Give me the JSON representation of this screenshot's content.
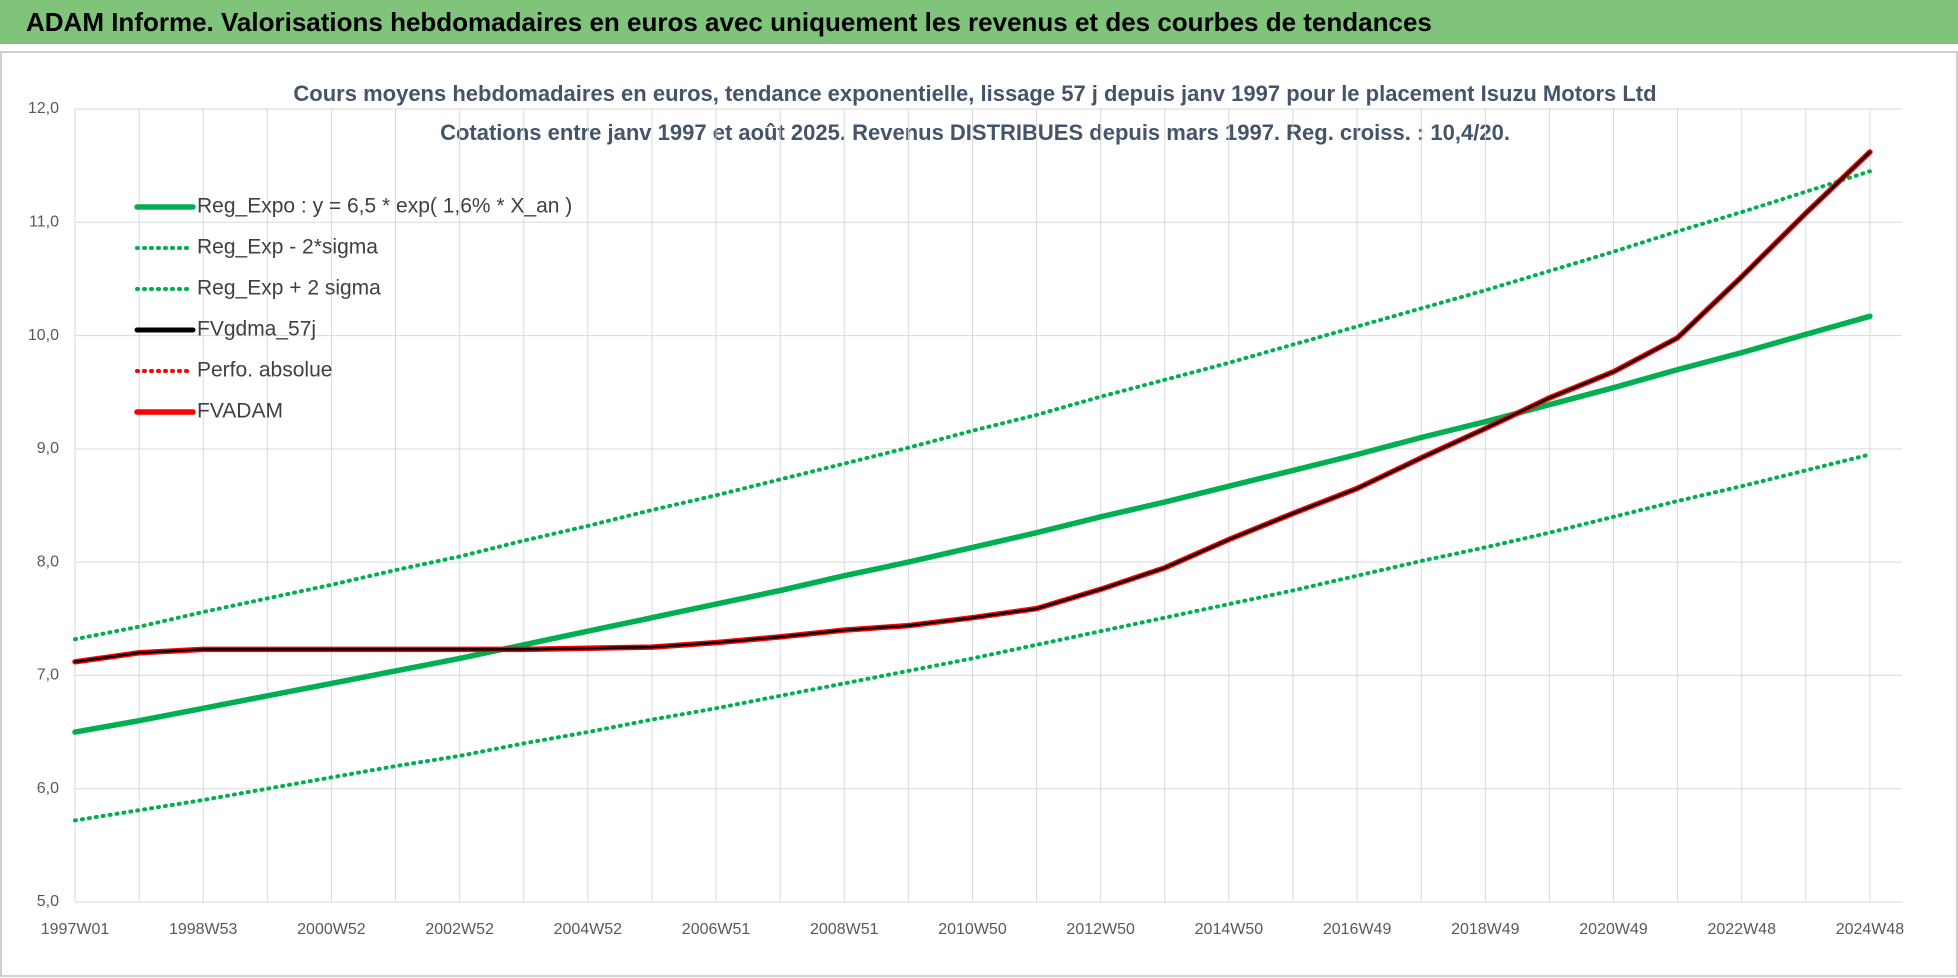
{
  "header": {
    "title": "ADAM Informe. Valorisations hebdomadaires en euros avec uniquement les revenus et des courbes de tendances"
  },
  "chart_data": {
    "type": "line",
    "title": "Cours moyens hebdomadaires en euros, tendance exponentielle, lissage 57 j depuis janv 1997 pour le placement Isuzu Motors Ltd",
    "subtitle": "Cotations entre janv 1997 et août 2025.  Revenus DISTRIBUES depuis mars 1997. Reg. croiss. : 10,4/20.",
    "categories": [
      "1997W01",
      null,
      "1998W53",
      null,
      "2000W52",
      null,
      "2002W52",
      null,
      "2004W52",
      null,
      "2006W51",
      null,
      "2008W51",
      null,
      "2010W50",
      null,
      "2012W50",
      null,
      "2014W50",
      null,
      "2016W49",
      null,
      "2018W49",
      null,
      "2020W49",
      null,
      "2022W48",
      null,
      "2024W48"
    ],
    "ylim": [
      5,
      12
    ],
    "yticks": [
      {
        "value": 5,
        "label": "5,0"
      },
      {
        "value": 6,
        "label": "6,0"
      },
      {
        "value": 7,
        "label": "7,0"
      },
      {
        "value": 8,
        "label": "8,0"
      },
      {
        "value": 9,
        "label": "9,0"
      },
      {
        "value": 10,
        "label": "10,0"
      },
      {
        "value": 11,
        "label": "11,0"
      },
      {
        "value": 12,
        "label": "12,0"
      }
    ],
    "grid": true,
    "legend": "upper left",
    "series": [
      {
        "name": "Reg_Expo : y = 6,5 * exp( 1,6% *  X_an )",
        "color": "#00b050",
        "line_style": "solid",
        "values": [
          6.5,
          6.6,
          6.71,
          6.82,
          6.93,
          7.04,
          7.15,
          7.27,
          7.39,
          7.51,
          7.63,
          7.75,
          7.88,
          8.0,
          8.13,
          8.26,
          8.4,
          8.53,
          8.67,
          8.81,
          8.95,
          9.1,
          9.24,
          9.39,
          9.54,
          9.7,
          9.85,
          10.01,
          10.17
        ]
      },
      {
        "name": "Reg_Exp - 2*sigma",
        "color": "#00b050",
        "line_style": "dotted",
        "values": [
          5.72,
          5.81,
          5.9,
          6.0,
          6.1,
          6.2,
          6.29,
          6.4,
          6.5,
          6.61,
          6.71,
          6.82,
          6.93,
          7.04,
          7.15,
          7.27,
          7.39,
          7.51,
          7.63,
          7.75,
          7.88,
          8.01,
          8.13,
          8.26,
          8.4,
          8.54,
          8.67,
          8.81,
          8.95
        ]
      },
      {
        "name": "Reg_Exp + 2 sigma",
        "color": "#00b050",
        "line_style": "dotted",
        "values": [
          7.32,
          7.43,
          7.56,
          7.68,
          7.8,
          7.93,
          8.05,
          8.19,
          8.32,
          8.46,
          8.59,
          8.73,
          8.87,
          9.01,
          9.16,
          9.3,
          9.46,
          9.61,
          9.76,
          9.92,
          10.08,
          10.24,
          10.4,
          10.57,
          10.74,
          10.92,
          11.09,
          11.27,
          11.45
        ]
      },
      {
        "name": "FVgdma_57j",
        "color": "#000000",
        "line_style": "solid",
        "values": [
          7.12,
          7.2,
          7.23,
          7.23,
          7.23,
          7.23,
          7.23,
          7.23,
          7.24,
          7.25,
          7.29,
          7.34,
          7.4,
          7.44,
          7.51,
          7.59,
          7.76,
          7.95,
          8.2,
          8.43,
          8.65,
          8.92,
          9.18,
          9.45,
          9.68,
          9.98,
          10.52,
          11.08,
          11.62
        ]
      },
      {
        "name": "Perfo. absolue",
        "color": "#ff0000",
        "line_style": "dotted",
        "values": [
          7.12,
          7.2,
          7.23,
          7.23,
          7.23,
          7.23,
          7.23,
          7.23,
          7.24,
          7.25,
          7.29,
          7.34,
          7.4,
          7.44,
          7.51,
          7.59,
          7.76,
          7.95,
          8.2,
          8.43,
          8.65,
          8.92,
          9.18,
          9.45,
          9.68,
          9.98,
          10.52,
          11.08,
          11.62
        ]
      },
      {
        "name": "FVADAM",
        "color": "#ff0000",
        "line_style": "solid",
        "values": [
          7.12,
          7.2,
          7.23,
          7.23,
          7.23,
          7.23,
          7.23,
          7.23,
          7.24,
          7.25,
          7.29,
          7.34,
          7.4,
          7.44,
          7.51,
          7.59,
          7.76,
          7.95,
          8.2,
          8.43,
          8.65,
          8.92,
          9.18,
          9.45,
          9.68,
          9.98,
          10.52,
          11.08,
          11.62
        ]
      }
    ]
  }
}
